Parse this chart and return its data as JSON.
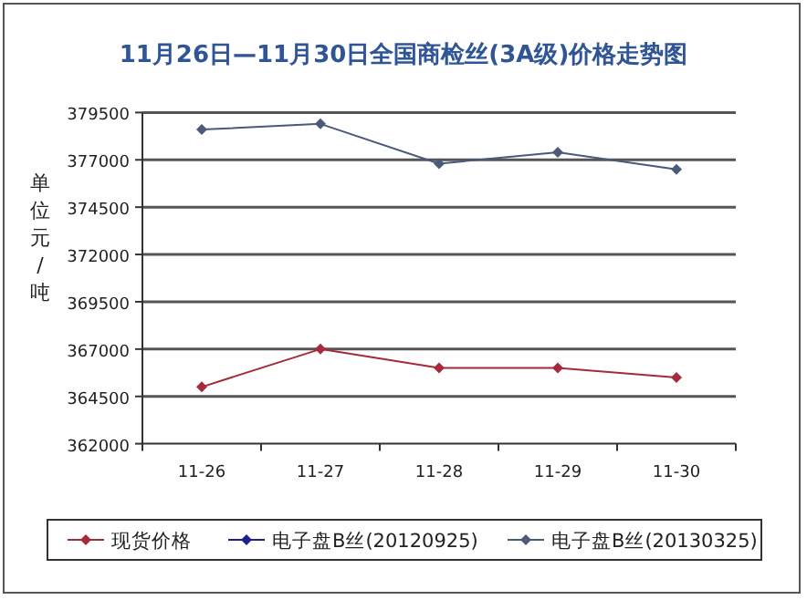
{
  "chart_data": {
    "type": "line",
    "title": "11月26日—11月30日全国商检丝(3A级)价格走势图",
    "ylabel": "单位元/吨",
    "categories": [
      "11-26",
      "11-27",
      "11-28",
      "11-29",
      "11-30"
    ],
    "series": [
      {
        "name": "现货价格",
        "color": "#a52a3a",
        "values": [
          365000,
          367000,
          366000,
          366000,
          365500
        ]
      },
      {
        "name": "电子盘B丝(20120925)",
        "color": "#1f1f8f",
        "values": [
          null,
          null,
          null,
          null,
          null
        ]
      },
      {
        "name": "电子盘B丝(20130325)",
        "color": "#4a5a7a",
        "values": [
          378600,
          378900,
          376800,
          377400,
          376500
        ]
      }
    ],
    "ylim": [
      362000,
      379500
    ],
    "yticks": [
      362000,
      364500,
      367000,
      369500,
      372000,
      374500,
      377000,
      379500
    ],
    "grid": "y",
    "legend": "bottom",
    "marker": "diamond"
  }
}
